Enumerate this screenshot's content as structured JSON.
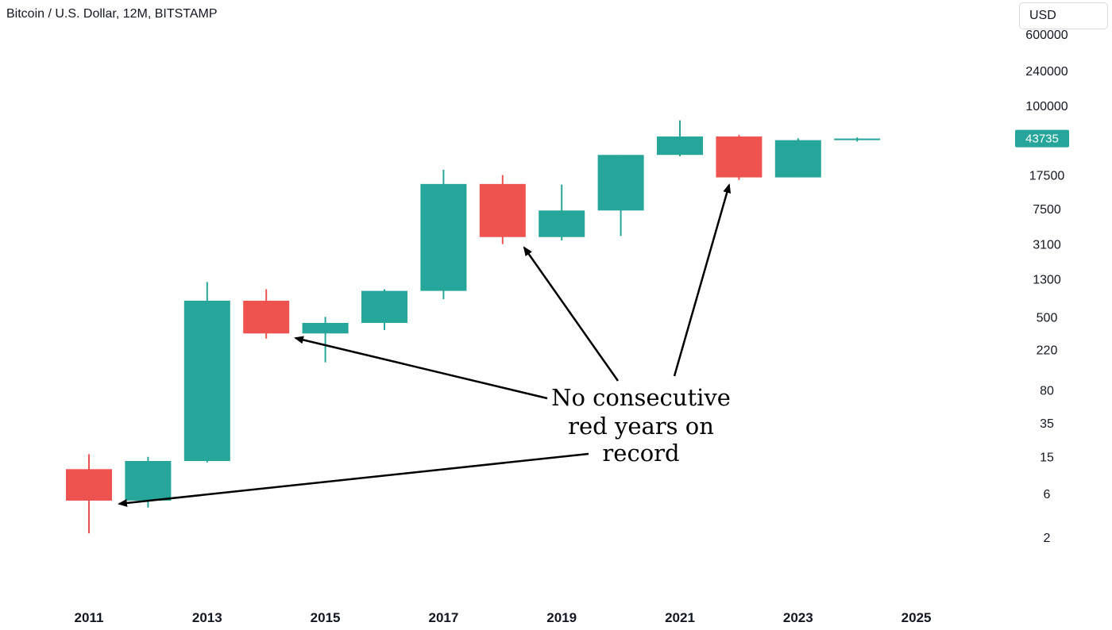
{
  "header": {
    "title": "Bitcoin / U.S. Dollar, 12M, BITSTAMP",
    "currency_label": "USD"
  },
  "chart_data": {
    "type": "candlestick",
    "scale": "log",
    "colors": {
      "up": "#26a69a",
      "down": "#ef5350",
      "annotation": "#000000"
    },
    "y_ticks": [
      2,
      6,
      15,
      35,
      80,
      220,
      500,
      1300,
      3100,
      7500,
      17500,
      100000,
      240000,
      600000
    ],
    "x_ticks": [
      "2011",
      "2013",
      "2015",
      "2017",
      "2019",
      "2021",
      "2023",
      "2025"
    ],
    "last_price": 43735,
    "candles": [
      {
        "year": "2011",
        "open": 11,
        "high": 16,
        "low": 2.2,
        "close": 5
      },
      {
        "year": "2012",
        "open": 5,
        "high": 15,
        "low": 4.2,
        "close": 13.5
      },
      {
        "year": "2013",
        "open": 13.5,
        "high": 1200,
        "low": 13,
        "close": 750
      },
      {
        "year": "2014",
        "open": 750,
        "high": 1000,
        "low": 290,
        "close": 330
      },
      {
        "year": "2015",
        "open": 330,
        "high": 500,
        "low": 160,
        "close": 430
      },
      {
        "year": "2016",
        "open": 430,
        "high": 1000,
        "low": 360,
        "close": 960
      },
      {
        "year": "2017",
        "open": 960,
        "high": 20000,
        "low": 780,
        "close": 14000
      },
      {
        "year": "2018",
        "open": 14000,
        "high": 17500,
        "low": 3100,
        "close": 3700
      },
      {
        "year": "2019",
        "open": 3700,
        "high": 13800,
        "low": 3400,
        "close": 7200
      },
      {
        "year": "2020",
        "open": 7200,
        "high": 29000,
        "low": 3800,
        "close": 29000
      },
      {
        "year": "2021",
        "open": 29000,
        "high": 69000,
        "low": 28000,
        "close": 46000
      },
      {
        "year": "2022",
        "open": 46000,
        "high": 48000,
        "low": 15500,
        "close": 16500
      },
      {
        "year": "2023",
        "open": 16500,
        "high": 44000,
        "low": 16500,
        "close": 42000
      },
      {
        "year": "2024",
        "open": 42000,
        "high": 45000,
        "low": 40500,
        "close": 43735
      }
    ],
    "annotations": [
      {
        "text_lines": [
          "No consecutive",
          "red years on",
          "record"
        ]
      }
    ]
  }
}
